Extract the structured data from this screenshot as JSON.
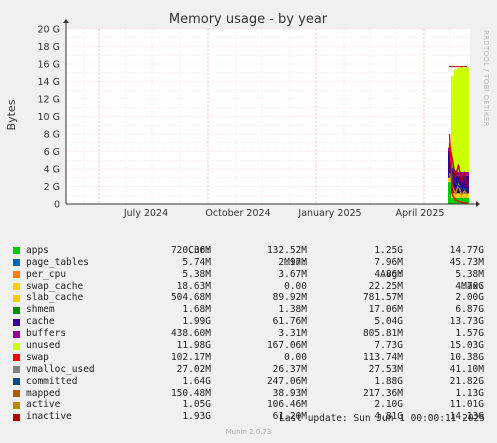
{
  "chart_data": {
    "type": "area",
    "title": "Memory usage - by year",
    "ylabel": "Bytes",
    "side_label": "RRDTOOL / TOBI OETIKER",
    "ylim": [
      0,
      20
    ],
    "y_unit": "G",
    "yticks": [
      "0",
      "2 G",
      "4 G",
      "6 G",
      "8 G",
      "10 G",
      "12 G",
      "14 G",
      "16 G",
      "18 G",
      "20 G"
    ],
    "xticks": [
      "July 2024",
      "October 2024",
      "January 2025",
      "April 2025"
    ],
    "grid": true,
    "series_stack_order": [
      "apps",
      "page_tables",
      "per_cpu",
      "swap_cache",
      "slab_cache",
      "shmem",
      "cache",
      "buffers",
      "unused",
      "swap"
    ],
    "recent_stack_G": {
      "apps": 0.72,
      "slab_cache": 0.5,
      "cache": 2.0,
      "buffers": 0.44,
      "unused": 11.98
    }
  },
  "legend": {
    "headers": {
      "cur": "Cur:",
      "min": "Min:",
      "avg": "Avg:",
      "max": "Max:"
    },
    "rows": [
      {
        "name": "apps",
        "color": "#00cc00",
        "cur": "720.36M",
        "min": "132.52M",
        "avg": "1.25G",
        "max": "14.77G"
      },
      {
        "name": "page_tables",
        "color": "#0066b3",
        "cur": "5.74M",
        "min": "2.97M",
        "avg": "7.96M",
        "max": "45.73M"
      },
      {
        "name": "per_cpu",
        "color": "#ff8000",
        "cur": "5.38M",
        "min": "3.67M",
        "avg": "4.86M",
        "max": "5.38M"
      },
      {
        "name": "swap_cache",
        "color": "#ffcc00",
        "cur": "18.63M",
        "min": "0.00",
        "avg": "22.25M",
        "max": "4.70G"
      },
      {
        "name": "slab_cache",
        "color": "#ffcc00",
        "cur": "504.68M",
        "min": "89.92M",
        "avg": "781.57M",
        "max": "2.00G"
      },
      {
        "name": "shmem",
        "color": "#008f00",
        "cur": "1.68M",
        "min": "1.38M",
        "avg": "17.06M",
        "max": "6.87G"
      },
      {
        "name": "cache",
        "color": "#330099",
        "cur": "1.99G",
        "min": "61.76M",
        "avg": "5.04G",
        "max": "13.73G"
      },
      {
        "name": "buffers",
        "color": "#990099",
        "cur": "438.60M",
        "min": "3.31M",
        "avg": "805.81M",
        "max": "1.57G"
      },
      {
        "name": "unused",
        "color": "#ccff00",
        "cur": "11.98G",
        "min": "167.06M",
        "avg": "7.73G",
        "max": "15.03G"
      },
      {
        "name": "swap",
        "color": "#ff0000",
        "cur": "102.17M",
        "min": "0.00",
        "avg": "113.74M",
        "max": "10.38G"
      },
      {
        "name": "vmalloc_used",
        "color": "#808080",
        "cur": "27.02M",
        "min": "26.37M",
        "avg": "27.53M",
        "max": "41.10M"
      },
      {
        "name": "committed",
        "color": "#004d80",
        "cur": "1.64G",
        "min": "247.06M",
        "avg": "1.88G",
        "max": "21.82G"
      },
      {
        "name": "mapped",
        "color": "#b35a00",
        "cur": "150.48M",
        "min": "38.93M",
        "avg": "217.36M",
        "max": "1.13G"
      },
      {
        "name": "active",
        "color": "#b38f00",
        "cur": "1.05G",
        "min": "106.46M",
        "avg": "2.10G",
        "max": "11.01G"
      },
      {
        "name": "inactive",
        "color": "#b30000",
        "cur": "1.93G",
        "min": "61.20M",
        "avg": "4.81G",
        "max": "14.13G"
      }
    ]
  },
  "last_update": "Last update: Sun Jun  1 00:00:11 2025",
  "footer": "Munin 2.0.73"
}
